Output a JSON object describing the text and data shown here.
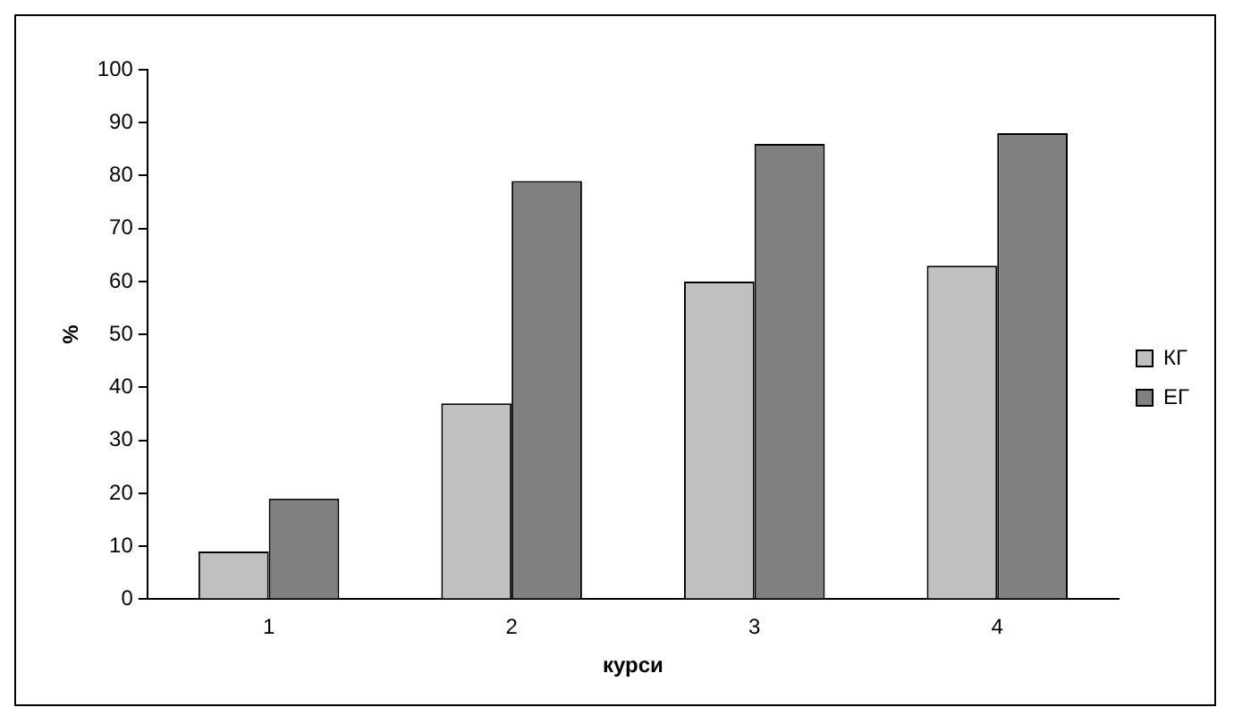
{
  "chart_data": {
    "type": "bar",
    "xlabel": "курси",
    "ylabel": "%",
    "categories": [
      "1",
      "2",
      "3",
      "4"
    ],
    "series": [
      {
        "name": "КГ",
        "color": "#c0c0c0",
        "values": [
          9,
          37,
          60,
          63
        ]
      },
      {
        "name": "ЕГ",
        "color": "#808080",
        "values": [
          19,
          79,
          86,
          88
        ]
      }
    ],
    "ylim": [
      0,
      100
    ],
    "yticks": [
      0,
      10,
      20,
      30,
      40,
      50,
      60,
      70,
      80,
      90,
      100
    ],
    "grid": false,
    "legend": "right"
  }
}
